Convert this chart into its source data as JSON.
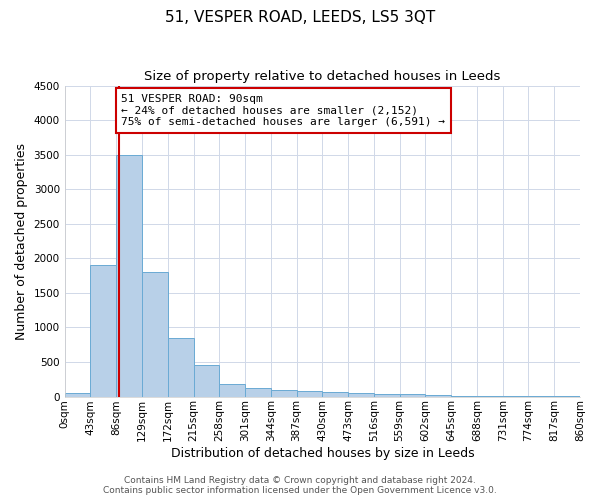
{
  "title": "51, VESPER ROAD, LEEDS, LS5 3QT",
  "subtitle": "Size of property relative to detached houses in Leeds",
  "xlabel": "Distribution of detached houses by size in Leeds",
  "ylabel": "Number of detached properties",
  "bin_labels": [
    "0sqm",
    "43sqm",
    "86sqm",
    "129sqm",
    "172sqm",
    "215sqm",
    "258sqm",
    "301sqm",
    "344sqm",
    "387sqm",
    "430sqm",
    "473sqm",
    "516sqm",
    "559sqm",
    "602sqm",
    "645sqm",
    "688sqm",
    "731sqm",
    "774sqm",
    "817sqm",
    "860sqm"
  ],
  "bar_values": [
    50,
    1900,
    3500,
    1800,
    850,
    450,
    175,
    120,
    95,
    80,
    60,
    50,
    40,
    30,
    20,
    15,
    10,
    8,
    5,
    3
  ],
  "bar_color": "#b8d0e8",
  "bar_edge_color": "#6aaad4",
  "ylim": [
    0,
    4500
  ],
  "yticks": [
    0,
    500,
    1000,
    1500,
    2000,
    2500,
    3000,
    3500,
    4000,
    4500
  ],
  "property_line_color": "#cc0000",
  "annotation_text": "51 VESPER ROAD: 90sqm\n← 24% of detached houses are smaller (2,152)\n75% of semi-detached houses are larger (6,591) →",
  "annotation_box_color": "#ffffff",
  "annotation_box_edge_color": "#cc0000",
  "footer_line1": "Contains HM Land Registry data © Crown copyright and database right 2024.",
  "footer_line2": "Contains public sector information licensed under the Open Government Licence v3.0.",
  "background_color": "#ffffff",
  "grid_color": "#d0d8e8",
  "title_fontsize": 11,
  "subtitle_fontsize": 9.5,
  "annotation_fontsize": 8,
  "axis_label_fontsize": 9,
  "tick_fontsize": 7.5,
  "footer_fontsize": 6.5
}
